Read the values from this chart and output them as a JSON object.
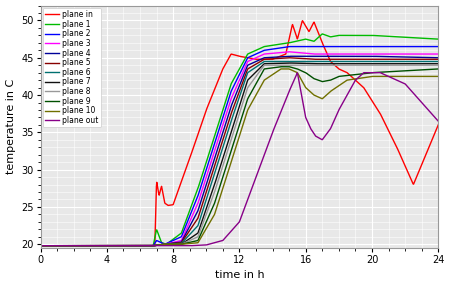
{
  "title": "",
  "xlabel": "time in h",
  "ylabel": "temperature in C",
  "xlim": [
    0,
    24
  ],
  "ylim": [
    19.5,
    52
  ],
  "xticks": [
    0,
    4,
    8,
    12,
    16,
    20,
    24
  ],
  "yticks": [
    20,
    25,
    30,
    35,
    40,
    45,
    50
  ],
  "background_color": "#e8e8e8",
  "series": [
    {
      "label": "plane in",
      "color": "#ff0000",
      "lw": 1.0,
      "points": [
        [
          0,
          19.8
        ],
        [
          6.7,
          19.8
        ],
        [
          6.9,
          19.9
        ],
        [
          7.0,
          28.5
        ],
        [
          7.15,
          26.5
        ],
        [
          7.3,
          27.8
        ],
        [
          7.5,
          25.5
        ],
        [
          7.7,
          25.2
        ],
        [
          8.0,
          25.3
        ],
        [
          9.0,
          31.5
        ],
        [
          10.0,
          38.0
        ],
        [
          11.0,
          43.5
        ],
        [
          11.5,
          45.5
        ],
        [
          12.0,
          45.2
        ],
        [
          13.0,
          44.8
        ],
        [
          14.0,
          44.8
        ],
        [
          14.8,
          45.5
        ],
        [
          15.2,
          49.5
        ],
        [
          15.5,
          47.5
        ],
        [
          15.8,
          50.0
        ],
        [
          16.2,
          48.5
        ],
        [
          16.5,
          49.8
        ],
        [
          17.0,
          47.0
        ],
        [
          17.5,
          44.5
        ],
        [
          18.0,
          43.5
        ],
        [
          18.5,
          43.0
        ],
        [
          19.5,
          41.0
        ],
        [
          20.5,
          37.5
        ],
        [
          21.5,
          33.0
        ],
        [
          22.5,
          28.0
        ],
        [
          24.0,
          36.0
        ]
      ]
    },
    {
      "label": "plane 1",
      "color": "#00bb00",
      "lw": 1.0,
      "points": [
        [
          0,
          19.8
        ],
        [
          6.8,
          19.8
        ],
        [
          7.0,
          22.0
        ],
        [
          7.3,
          20.2
        ],
        [
          7.6,
          20.0
        ],
        [
          8.5,
          21.5
        ],
        [
          9.5,
          27.5
        ],
        [
          10.5,
          34.5
        ],
        [
          11.5,
          41.5
        ],
        [
          12.5,
          45.5
        ],
        [
          13.5,
          46.5
        ],
        [
          15.0,
          47.0
        ],
        [
          16.0,
          47.5
        ],
        [
          16.5,
          47.2
        ],
        [
          17.0,
          48.2
        ],
        [
          17.5,
          47.8
        ],
        [
          18.0,
          48.0
        ],
        [
          20.0,
          48.0
        ],
        [
          24.0,
          47.5
        ]
      ]
    },
    {
      "label": "plane 2",
      "color": "#0000ff",
      "lw": 1.0,
      "points": [
        [
          0,
          19.8
        ],
        [
          6.8,
          19.8
        ],
        [
          7.0,
          20.5
        ],
        [
          7.5,
          20.0
        ],
        [
          8.5,
          21.0
        ],
        [
          9.5,
          26.5
        ],
        [
          10.5,
          33.5
        ],
        [
          11.5,
          40.5
        ],
        [
          12.5,
          45.0
        ],
        [
          13.5,
          46.0
        ],
        [
          15.0,
          46.5
        ],
        [
          16.5,
          46.5
        ],
        [
          18.0,
          46.5
        ],
        [
          20.0,
          46.5
        ],
        [
          24.0,
          46.5
        ]
      ]
    },
    {
      "label": "plane 3",
      "color": "#ff00ff",
      "lw": 1.0,
      "points": [
        [
          0,
          19.8
        ],
        [
          6.8,
          19.8
        ],
        [
          7.5,
          20.0
        ],
        [
          8.5,
          20.5
        ],
        [
          9.5,
          25.5
        ],
        [
          10.5,
          32.5
        ],
        [
          11.5,
          39.5
        ],
        [
          12.5,
          44.5
        ],
        [
          13.5,
          45.5
        ],
        [
          15.0,
          45.8
        ],
        [
          16.5,
          45.5
        ],
        [
          18.0,
          45.5
        ],
        [
          20.0,
          45.5
        ],
        [
          24.0,
          45.5
        ]
      ]
    },
    {
      "label": "plane 4",
      "color": "#000099",
      "lw": 1.0,
      "points": [
        [
          0,
          19.8
        ],
        [
          6.8,
          19.8
        ],
        [
          7.5,
          20.0
        ],
        [
          8.5,
          20.3
        ],
        [
          9.5,
          24.5
        ],
        [
          10.5,
          31.5
        ],
        [
          11.5,
          38.5
        ],
        [
          12.5,
          44.0
        ],
        [
          13.5,
          45.0
        ],
        [
          15.0,
          45.2
        ],
        [
          16.5,
          45.2
        ],
        [
          18.0,
          45.2
        ],
        [
          20.0,
          45.2
        ],
        [
          24.0,
          45.0
        ]
      ]
    },
    {
      "label": "plane 5",
      "color": "#880000",
      "lw": 1.0,
      "points": [
        [
          0,
          19.8
        ],
        [
          6.8,
          19.8
        ],
        [
          7.5,
          20.0
        ],
        [
          8.5,
          20.2
        ],
        [
          9.5,
          23.5
        ],
        [
          10.5,
          30.5
        ],
        [
          11.5,
          37.5
        ],
        [
          12.5,
          43.5
        ],
        [
          13.5,
          44.8
        ],
        [
          15.0,
          45.0
        ],
        [
          16.5,
          44.8
        ],
        [
          18.0,
          44.8
        ],
        [
          20.0,
          44.8
        ],
        [
          24.0,
          44.8
        ]
      ]
    },
    {
      "label": "plane 6",
      "color": "#007070",
      "lw": 1.0,
      "points": [
        [
          0,
          19.8
        ],
        [
          6.8,
          19.8
        ],
        [
          7.5,
          20.0
        ],
        [
          8.5,
          20.1
        ],
        [
          9.5,
          22.5
        ],
        [
          10.5,
          29.5
        ],
        [
          11.5,
          36.5
        ],
        [
          12.5,
          43.0
        ],
        [
          13.5,
          44.5
        ],
        [
          15.0,
          44.5
        ],
        [
          16.5,
          44.5
        ],
        [
          18.0,
          44.5
        ],
        [
          20.0,
          44.5
        ],
        [
          24.0,
          44.5
        ]
      ]
    },
    {
      "label": "plane 7",
      "color": "#111111",
      "lw": 1.0,
      "points": [
        [
          0,
          19.8
        ],
        [
          6.8,
          19.8
        ],
        [
          7.5,
          20.0
        ],
        [
          8.5,
          20.0
        ],
        [
          9.5,
          21.5
        ],
        [
          10.5,
          28.0
        ],
        [
          11.5,
          35.0
        ],
        [
          12.5,
          42.0
        ],
        [
          13.5,
          44.2
        ],
        [
          15.0,
          44.3
        ],
        [
          16.5,
          44.2
        ],
        [
          18.0,
          44.2
        ],
        [
          20.0,
          44.2
        ],
        [
          24.0,
          44.2
        ]
      ]
    },
    {
      "label": "plane 8",
      "color": "#999999",
      "lw": 1.0,
      "points": [
        [
          0,
          19.8
        ],
        [
          6.8,
          19.8
        ],
        [
          7.5,
          20.0
        ],
        [
          8.5,
          20.0
        ],
        [
          9.5,
          21.0
        ],
        [
          10.5,
          27.0
        ],
        [
          11.5,
          34.0
        ],
        [
          12.5,
          41.0
        ],
        [
          13.5,
          44.0
        ],
        [
          15.0,
          44.0
        ],
        [
          16.5,
          44.0
        ],
        [
          18.0,
          44.0
        ],
        [
          20.0,
          44.0
        ],
        [
          24.0,
          44.0
        ]
      ]
    },
    {
      "label": "plane 9",
      "color": "#005000",
      "lw": 1.0,
      "points": [
        [
          0,
          19.8
        ],
        [
          6.8,
          19.8
        ],
        [
          7.5,
          20.0
        ],
        [
          8.5,
          20.0
        ],
        [
          9.5,
          20.5
        ],
        [
          10.5,
          25.5
        ],
        [
          11.5,
          32.5
        ],
        [
          12.5,
          39.5
        ],
        [
          13.5,
          43.5
        ],
        [
          14.5,
          43.8
        ],
        [
          15.0,
          43.8
        ],
        [
          15.5,
          43.5
        ],
        [
          16.0,
          43.0
        ],
        [
          16.5,
          42.2
        ],
        [
          17.0,
          41.8
        ],
        [
          17.5,
          42.0
        ],
        [
          18.0,
          42.5
        ],
        [
          20.0,
          43.0
        ],
        [
          24.0,
          43.5
        ]
      ]
    },
    {
      "label": "plane 10",
      "color": "#707000",
      "lw": 1.0,
      "points": [
        [
          0,
          19.8
        ],
        [
          6.8,
          19.8
        ],
        [
          7.5,
          20.0
        ],
        [
          8.5,
          20.0
        ],
        [
          9.5,
          20.2
        ],
        [
          10.5,
          24.0
        ],
        [
          11.5,
          31.0
        ],
        [
          12.5,
          38.0
        ],
        [
          13.5,
          42.0
        ],
        [
          14.5,
          43.5
        ],
        [
          15.0,
          43.5
        ],
        [
          15.5,
          43.0
        ],
        [
          16.0,
          41.0
        ],
        [
          16.5,
          40.0
        ],
        [
          17.0,
          39.5
        ],
        [
          17.5,
          40.5
        ],
        [
          18.5,
          42.0
        ],
        [
          20.0,
          42.5
        ],
        [
          24.0,
          42.5
        ]
      ]
    },
    {
      "label": "plane out",
      "color": "#880088",
      "lw": 1.0,
      "points": [
        [
          0,
          19.8
        ],
        [
          9.0,
          19.8
        ],
        [
          10.0,
          19.9
        ],
        [
          11.0,
          20.5
        ],
        [
          12.0,
          23.0
        ],
        [
          13.0,
          29.0
        ],
        [
          14.0,
          35.0
        ],
        [
          15.0,
          40.5
        ],
        [
          15.5,
          43.0
        ],
        [
          16.0,
          37.0
        ],
        [
          16.3,
          35.5
        ],
        [
          16.6,
          34.5
        ],
        [
          17.0,
          34.0
        ],
        [
          17.5,
          35.5
        ],
        [
          18.0,
          38.0
        ],
        [
          18.5,
          40.0
        ],
        [
          19.0,
          42.0
        ],
        [
          19.5,
          43.0
        ],
        [
          20.5,
          43.0
        ],
        [
          22.0,
          41.5
        ],
        [
          23.0,
          39.0
        ],
        [
          24.0,
          36.5
        ]
      ]
    }
  ]
}
